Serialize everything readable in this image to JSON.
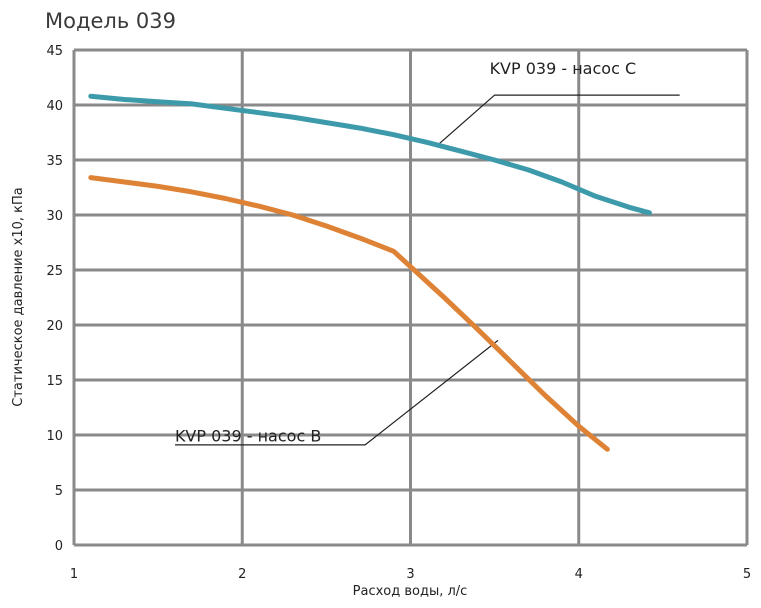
{
  "chart_data": {
    "type": "line",
    "title": "Модель 039",
    "xlabel": "Расход воды, л/с",
    "ylabel": "Статическое давление x10, кПа",
    "xlim": [
      1,
      5
    ],
    "ylim": [
      0,
      45
    ],
    "x_ticks": [
      1,
      2,
      3,
      4,
      5
    ],
    "y_ticks": [
      0,
      5,
      10,
      15,
      20,
      25,
      30,
      35,
      40,
      45
    ],
    "grid": true,
    "series": [
      {
        "name": "KVP 039 -  насос C",
        "color": "#3d9aab",
        "x": [
          1.1,
          1.3,
          1.5,
          1.7,
          1.9,
          2.1,
          2.3,
          2.5,
          2.7,
          2.9,
          3.1,
          3.3,
          3.5,
          3.7,
          3.9,
          4.1,
          4.3,
          4.42
        ],
        "y": [
          40.8,
          40.5,
          40.3,
          40.1,
          39.7,
          39.3,
          38.9,
          38.4,
          37.9,
          37.3,
          36.6,
          35.8,
          35.0,
          34.1,
          33.0,
          31.7,
          30.7,
          30.2
        ]
      },
      {
        "name": "KVP 039 - насос B",
        "color": "#de8236",
        "x": [
          1.1,
          1.3,
          1.5,
          1.7,
          1.9,
          2.1,
          2.3,
          2.5,
          2.7,
          2.9,
          3.0,
          3.2,
          3.4,
          3.6,
          3.8,
          4.0,
          4.17
        ],
        "y": [
          33.4,
          33.0,
          32.6,
          32.1,
          31.5,
          30.8,
          30.0,
          29.0,
          27.9,
          26.7,
          25.3,
          22.5,
          19.6,
          16.6,
          13.6,
          10.8,
          8.7
        ]
      }
    ],
    "annotations": [
      {
        "text": "KVP 039 -  насос C",
        "series": 0,
        "label_at": [
          3.47,
          42.8
        ],
        "leader": [
          [
            3.55,
            40.9
          ],
          [
            4.6,
            40.9
          ],
          [
            3.5,
            40.9
          ],
          [
            3.15,
            36.2
          ]
        ]
      },
      {
        "text": "KVP 039 - насос B",
        "series": 1,
        "label_at": [
          1.6,
          9.4
        ],
        "leader": [
          [
            1.6,
            9.1
          ],
          [
            2.73,
            9.1
          ],
          [
            3.52,
            18.6
          ]
        ]
      }
    ]
  }
}
